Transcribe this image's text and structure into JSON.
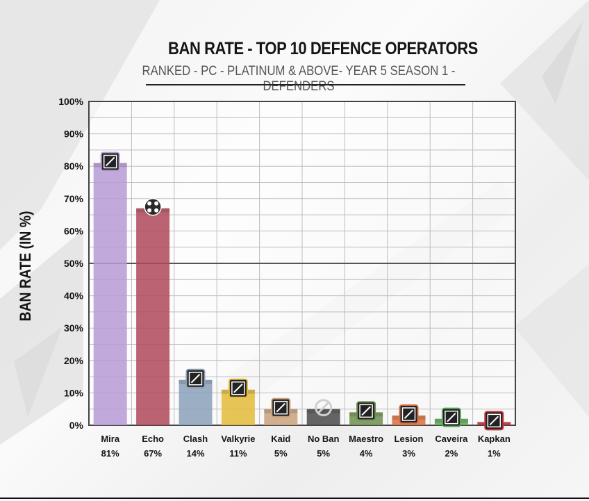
{
  "chart_data": {
    "type": "bar",
    "title": "BAN RATE - TOP 10 DEFENCE OPERATORS",
    "subtitle": "RANKED - PC - PLATINUM & ABOVE- YEAR 5 SEASON 1 - DEFENDERS",
    "xlabel": "",
    "ylabel": "BAN RATE (IN %)",
    "ylim": [
      0,
      100
    ],
    "yticks": [
      0,
      10,
      20,
      30,
      40,
      50,
      60,
      70,
      80,
      90,
      100
    ],
    "ytick_labels": [
      "0%",
      "10%",
      "20%",
      "30%",
      "40%",
      "50%",
      "60%",
      "70%",
      "80%",
      "90%",
      "100%"
    ],
    "categories": [
      "Mira",
      "Echo",
      "Clash",
      "Valkyrie",
      "Kaid",
      "No Ban",
      "Maestro",
      "Lesion",
      "Caveira",
      "Kapkan"
    ],
    "values": [
      81,
      67,
      14,
      11,
      5,
      5,
      4,
      3,
      2,
      1
    ],
    "value_labels": [
      "81%",
      "67%",
      "14%",
      "11%",
      "5%",
      "5%",
      "4%",
      "3%",
      "2%",
      "1%"
    ],
    "colors": [
      "#b79ad6",
      "#b0485b",
      "#8aa0b8",
      "#e3bb3a",
      "#c9a27c",
      "#4a4a4a",
      "#6f8f4f",
      "#d96e3f",
      "#5aaa56",
      "#d0343c"
    ],
    "icons": [
      "mira-icon",
      "echo-icon",
      "clash-icon",
      "valkyrie-icon",
      "kaid-icon",
      "no-ban-icon",
      "maestro-icon",
      "lesion-icon",
      "caveira-icon",
      "kapkan-icon"
    ],
    "grid": true,
    "reference_line": 50,
    "legend": "none"
  }
}
